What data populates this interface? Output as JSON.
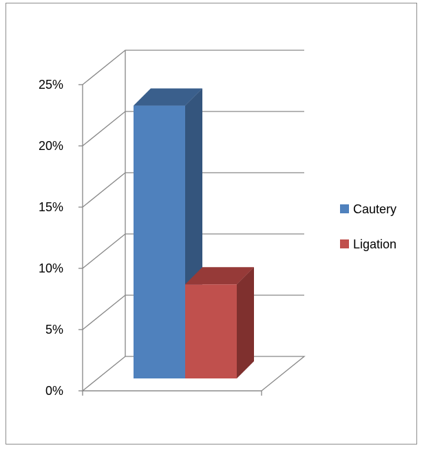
{
  "chart_data": {
    "type": "bar",
    "style": "3d-column",
    "series": [
      {
        "name": "Cautery",
        "value": 23.2,
        "color": "#4f81bd",
        "side_color": "#34557d",
        "top_color": "#3a5f8c"
      },
      {
        "name": "Ligation",
        "value": 8.0,
        "color": "#c0504d",
        "side_color": "#7f302e",
        "top_color": "#963a38"
      }
    ],
    "y_ticks": [
      "0%",
      "5%",
      "10%",
      "15%",
      "20%",
      "25%"
    ],
    "y_tick_values": [
      0,
      5,
      10,
      15,
      20,
      25
    ],
    "ylim": [
      0,
      25
    ],
    "unit": "%",
    "grid": true,
    "legend_position": "right"
  },
  "colors": {
    "gridline": "#868686",
    "frame": "#8c8c8c"
  }
}
